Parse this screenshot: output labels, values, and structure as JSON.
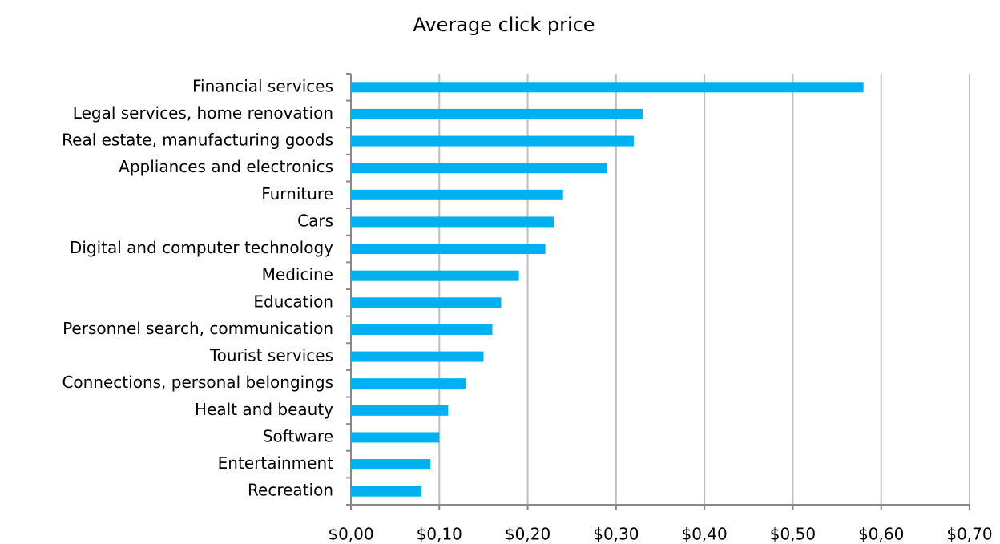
{
  "chart_data": {
    "type": "bar",
    "orientation": "horizontal",
    "title": "Average click price",
    "categories": [
      "Financial services",
      "Legal services, home renovation",
      "Real estate, manufacturing goods",
      "Appliances and electronics",
      "Furniture",
      "Cars",
      "Digital and computer technology",
      "Medicine",
      "Education",
      "Personnel search, communication",
      "Tourist services",
      "Connections, personal belongings",
      "Healt and beauty",
      "Software",
      "Entertainment",
      "Recreation"
    ],
    "values": [
      0.58,
      0.33,
      0.32,
      0.29,
      0.24,
      0.23,
      0.22,
      0.19,
      0.17,
      0.16,
      0.15,
      0.13,
      0.11,
      0.1,
      0.09,
      0.08
    ],
    "color": "#00b0f0",
    "xlim": [
      0,
      0.7
    ],
    "xticks": [
      {
        "value": 0,
        "label": "$0,00"
      },
      {
        "value": 0.1,
        "label": "$0,10"
      },
      {
        "value": 0.2,
        "label": "$0,20"
      },
      {
        "value": 0.3,
        "label": "$0,30"
      },
      {
        "value": 0.4,
        "label": "$0,40"
      },
      {
        "value": 0.5,
        "label": "$0,50"
      },
      {
        "value": 0.6,
        "label": "$0,60"
      },
      {
        "value": 0.7,
        "label": "$0,70"
      }
    ],
    "grid": true
  }
}
